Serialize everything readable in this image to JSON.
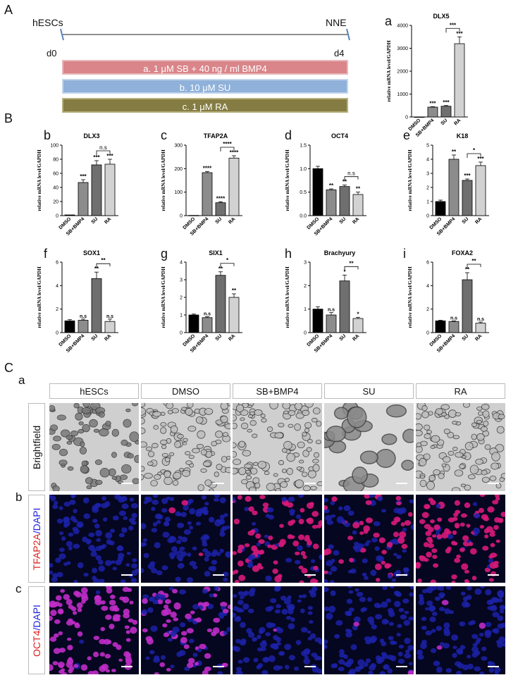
{
  "panel_labels": {
    "A": "A",
    "B": "B",
    "C": "C",
    "Ca": "a",
    "Cb": "b",
    "Cc": "c"
  },
  "timeline": {
    "start_label": "hESCs",
    "end_label": "NNE",
    "start_day": "d0",
    "end_day": "d4",
    "treatments": [
      {
        "label": "a. 1 μM SB + 40 ng / ml BMP4",
        "color": "#d98589"
      },
      {
        "label": "b. 10 μM SU",
        "color": "#8fb1da"
      },
      {
        "label": "c. 1 μM RA",
        "color": "#847c42"
      }
    ]
  },
  "chart_data": [
    {
      "type": "bar",
      "letter": "a",
      "title": "DLX5",
      "ylabel": "relative mRNA level/GAPDH",
      "categories": [
        "DMSO",
        "SB+BMP4",
        "SU",
        "RA"
      ],
      "values": [
        1,
        430,
        470,
        3200
      ],
      "errors": [
        0,
        20,
        30,
        300
      ],
      "ylim": [
        0,
        4000
      ],
      "ticks": [
        0,
        1000,
        2000,
        3000,
        4000
      ],
      "sig": [
        "",
        "***",
        "***",
        "***"
      ],
      "brackets": [
        {
          "from": 2,
          "to": 3,
          "label": "***"
        }
      ]
    },
    {
      "type": "bar",
      "letter": "b",
      "title": "DLX3",
      "ylabel": "relative mRNA level/GAPDH",
      "categories": [
        "DMSO",
        "SB+BMP4",
        "SU",
        "RA"
      ],
      "values": [
        1,
        47,
        72,
        73
      ],
      "errors": [
        0,
        4,
        6,
        7
      ],
      "ylim": [
        0,
        100
      ],
      "ticks": [
        0,
        20,
        40,
        60,
        80,
        100
      ],
      "sig": [
        "",
        "***",
        "***",
        "***"
      ],
      "brackets": [
        {
          "from": 2,
          "to": 3,
          "label": "n.s"
        }
      ]
    },
    {
      "type": "bar",
      "letter": "c",
      "title": "TFAP2A",
      "ylabel": "relative mRNA level/GAPDH",
      "categories": [
        "DMSO",
        "SB+BMP4",
        "SU",
        "RA"
      ],
      "values": [
        1,
        183,
        55,
        245
      ],
      "errors": [
        0,
        5,
        4,
        10
      ],
      "ylim": [
        0,
        300
      ],
      "ticks": [
        0,
        100,
        200,
        300
      ],
      "sig": [
        "",
        "****",
        "****",
        "****"
      ],
      "brackets": [
        {
          "from": 2,
          "to": 3,
          "label": "****"
        }
      ]
    },
    {
      "type": "bar",
      "letter": "d",
      "title": "OCT4",
      "ylabel": "relative mRNA level/GAPDH",
      "categories": [
        "DMSO",
        "SB+BMP4",
        "SU",
        "RA"
      ],
      "values": [
        1,
        0.55,
        0.62,
        0.45
      ],
      "errors": [
        0.05,
        0.02,
        0.03,
        0.05
      ],
      "ylim": [
        0,
        1.5
      ],
      "ticks": [
        0,
        0.5,
        1.0,
        1.5
      ],
      "tickfmt": 1,
      "sig": [
        "",
        "**",
        "**",
        "**"
      ],
      "brackets": [
        {
          "from": 2,
          "to": 3,
          "label": "n.s"
        }
      ]
    },
    {
      "type": "bar",
      "letter": "e",
      "title": "K18",
      "ylabel": "relative mRNA level/GAPDH",
      "categories": [
        "DMSO",
        "SB+BMP4",
        "SU",
        "RA"
      ],
      "values": [
        1,
        4,
        2.5,
        3.55
      ],
      "errors": [
        0.1,
        0.3,
        0.1,
        0.25
      ],
      "ylim": [
        0,
        5
      ],
      "ticks": [
        0,
        1,
        2,
        3,
        4,
        5
      ],
      "sig": [
        "",
        "**",
        "***",
        "***"
      ],
      "brackets": [
        {
          "from": 2,
          "to": 3,
          "label": "*"
        }
      ]
    },
    {
      "type": "bar",
      "letter": "f",
      "title": "SOX1",
      "ylabel": "relative mRNA level/GAPDH",
      "categories": [
        "DMSO",
        "SB+BMP4",
        "SU",
        "RA"
      ],
      "values": [
        1,
        1.05,
        4.6,
        0.95
      ],
      "errors": [
        0.1,
        0.1,
        0.55,
        0.2
      ],
      "ylim": [
        0,
        6
      ],
      "ticks": [
        0,
        2,
        4,
        6
      ],
      "sig": [
        "",
        "n.s",
        "**",
        "n.s"
      ],
      "brackets": [
        {
          "from": 2,
          "to": 3,
          "label": "**"
        }
      ]
    },
    {
      "type": "bar",
      "letter": "g",
      "title": "SIX1",
      "ylabel": "relative mRNA level/GAPDH",
      "categories": [
        "DMSO",
        "SB+BMP4",
        "SU",
        "RA"
      ],
      "values": [
        1,
        0.85,
        3.25,
        2
      ],
      "errors": [
        0.05,
        0.05,
        0.2,
        0.2
      ],
      "ylim": [
        0,
        4
      ],
      "ticks": [
        0,
        1,
        2,
        3,
        4
      ],
      "sig": [
        "",
        "n.s",
        "**",
        "**"
      ],
      "brackets": [
        {
          "from": 2,
          "to": 3,
          "label": "*"
        }
      ]
    },
    {
      "type": "bar",
      "letter": "h",
      "title": "Brachyury",
      "ylabel": "relative mRNA level/GAPDH",
      "categories": [
        "DMSO",
        "SB+BMP4",
        "SU",
        "RA"
      ],
      "values": [
        1,
        0.75,
        2.2,
        0.6
      ],
      "errors": [
        0.1,
        0.1,
        0.25,
        0.05
      ],
      "ylim": [
        0,
        3
      ],
      "ticks": [
        0,
        1,
        2,
        3
      ],
      "sig": [
        "",
        "n.s",
        "*",
        "*"
      ],
      "brackets": [
        {
          "from": 2,
          "to": 3,
          "label": "**"
        }
      ]
    },
    {
      "type": "bar",
      "letter": "i",
      "title": "FOXA2",
      "ylabel": "relative mRNA level/GAPDH",
      "categories": [
        "DMSO",
        "SB+BMP4",
        "SU",
        "RA"
      ],
      "values": [
        1,
        0.95,
        4.5,
        0.8
      ],
      "errors": [
        0.05,
        0.05,
        0.6,
        0.1
      ],
      "ylim": [
        0,
        6
      ],
      "ticks": [
        0,
        2,
        4,
        6
      ],
      "sig": [
        "",
        "n.s",
        "**",
        "n.s"
      ],
      "brackets": [
        {
          "from": 2,
          "to": 3,
          "label": "**"
        }
      ]
    }
  ],
  "bar_colors": [
    "#000000",
    "#8c8c8c",
    "#6f6f6f",
    "#d2d2d2"
  ],
  "image_grid": {
    "columns": [
      "hESCs",
      "DMSO",
      "SB+BMP4",
      "SU",
      "RA"
    ],
    "rows": [
      {
        "label": "Brightfield",
        "type": "brightfield"
      },
      {
        "label_red": "TFAP2A",
        "label_blue": "/DAPI",
        "type": "tfap2a",
        "red_intensity": [
          0,
          0.05,
          0.7,
          0.3,
          0.85
        ]
      },
      {
        "label_red": "OCT4",
        "label_blue": "/DAPI",
        "type": "oct4",
        "red_intensity": [
          0.95,
          0.55,
          0.02,
          0.02,
          0.02
        ]
      }
    ]
  }
}
